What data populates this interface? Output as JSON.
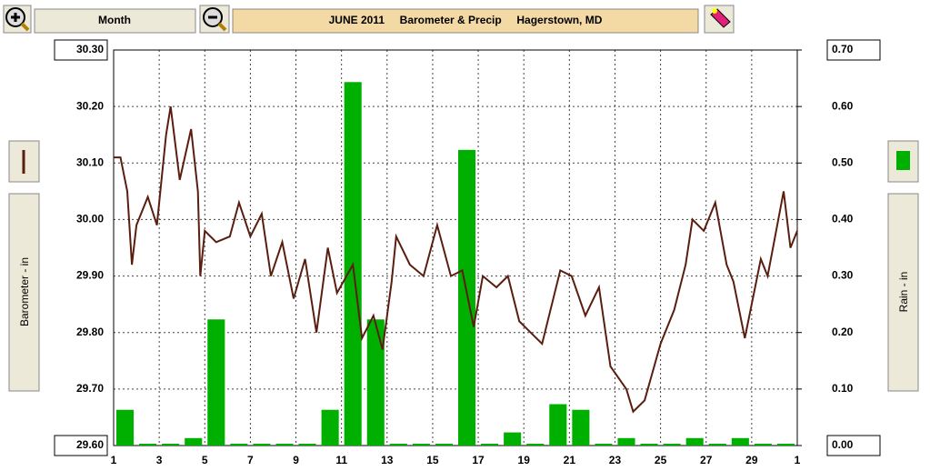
{
  "ui": {
    "view_button": "Month"
  },
  "chart_data": {
    "type": "combo",
    "title": "JUNE 2011     Barometer & Precip     Hagerstown, MD",
    "ylabel": "Barometer - in",
    "y2label": "Rain - in",
    "xlim": [
      1,
      31
    ],
    "xticks": [
      1,
      3,
      5,
      7,
      9,
      11,
      13,
      15,
      17,
      19,
      21,
      23,
      25,
      27,
      29,
      {
        "value": 31,
        "label": "1"
      }
    ],
    "ylim": [
      29.6,
      30.3
    ],
    "yticks": [
      {
        "value": 30.3,
        "label": "30.30"
      },
      {
        "value": 30.2,
        "label": "30.20"
      },
      {
        "value": 30.1,
        "label": "30.10"
      },
      {
        "value": 30.0,
        "label": "30.00"
      },
      {
        "value": 29.9,
        "label": "29.90"
      },
      {
        "value": 29.8,
        "label": "29.80"
      },
      {
        "value": 29.7,
        "label": "29.70"
      },
      {
        "value": 29.6,
        "label": "29.60"
      }
    ],
    "y2lim": [
      0,
      0.7
    ],
    "y2ticks": [
      {
        "value": 0.7,
        "label": "0.70"
      },
      {
        "value": 0.6,
        "label": "0.60"
      },
      {
        "value": 0.5,
        "label": "0.50"
      },
      {
        "value": 0.4,
        "label": "0.40"
      },
      {
        "value": 0.3,
        "label": "0.30"
      },
      {
        "value": 0.2,
        "label": "0.20"
      },
      {
        "value": 0.1,
        "label": "0.10"
      },
      {
        "value": 0,
        "label": "0.00"
      }
    ],
    "grid": true,
    "series": [
      {
        "type": "bar",
        "axis": "y2",
        "color": "#00b000",
        "x": [
          1,
          2,
          3,
          4,
          5,
          6,
          7,
          8,
          9,
          10,
          11,
          12,
          13,
          14,
          15,
          16,
          17,
          18,
          19,
          20,
          21,
          22,
          23,
          24,
          25,
          26,
          27,
          28,
          29,
          30
        ],
        "values": [
          0.06,
          0,
          0,
          0.01,
          0.22,
          0,
          0,
          0,
          0,
          0.06,
          0.64,
          0.22,
          0,
          0,
          0,
          0.52,
          0,
          0.02,
          0,
          0.07,
          0.06,
          0,
          0.01,
          0,
          0,
          0.01,
          0,
          0.01,
          0,
          0
        ]
      },
      {
        "type": "line",
        "axis": "y",
        "color": "#5a1e10",
        "x": [
          1.0,
          1.3,
          1.6,
          1.8,
          2.0,
          2.5,
          2.9,
          3.3,
          3.5,
          3.9,
          4.4,
          4.7,
          4.8,
          5.0,
          5.5,
          6.1,
          6.5,
          7.0,
          7.5,
          7.9,
          8.4,
          8.9,
          9.4,
          9.9,
          10.4,
          10.8,
          11.5,
          11.9,
          12.4,
          12.8,
          13.2,
          13.4,
          14.0,
          14.6,
          15.2,
          15.8,
          16.3,
          16.8,
          17.2,
          17.8,
          18.3,
          18.8,
          19.3,
          19.8,
          20.6,
          21.1,
          21.7,
          22.3,
          22.8,
          23.5,
          23.8,
          24.3,
          25.0,
          25.6,
          26.1,
          26.4,
          26.9,
          27.4,
          27.9,
          28.2,
          28.7,
          29.4,
          29.7,
          30.4,
          30.7,
          31.0
        ],
        "values": [
          30.11,
          30.11,
          30.05,
          29.92,
          29.99,
          30.04,
          29.99,
          30.15,
          30.2,
          30.07,
          30.16,
          30.05,
          29.9,
          29.98,
          29.96,
          29.97,
          30.03,
          29.97,
          30.01,
          29.9,
          29.96,
          29.86,
          29.93,
          29.8,
          29.95,
          29.87,
          29.92,
          29.79,
          29.83,
          29.77,
          29.89,
          29.97,
          29.92,
          29.9,
          29.99,
          29.9,
          29.91,
          29.81,
          29.9,
          29.88,
          29.9,
          29.82,
          29.8,
          29.78,
          29.91,
          29.9,
          29.83,
          29.88,
          29.74,
          29.7,
          29.66,
          29.68,
          29.78,
          29.84,
          29.92,
          30.0,
          29.98,
          30.03,
          29.92,
          29.89,
          29.79,
          29.93,
          29.9,
          30.05,
          29.95,
          29.98
        ]
      }
    ]
  }
}
